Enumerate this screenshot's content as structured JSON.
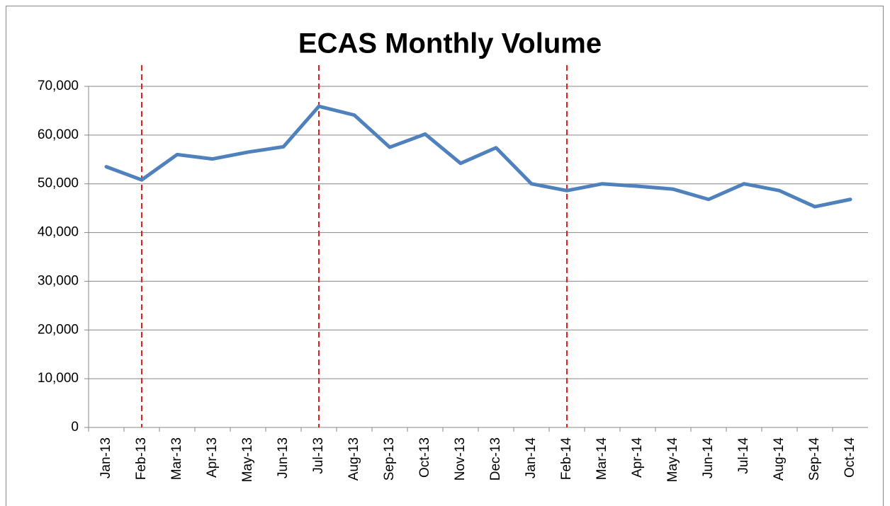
{
  "chart_data": {
    "type": "line",
    "title": "ECAS Monthly Volume",
    "categories": [
      "Jan-13",
      "Feb-13",
      "Mar-13",
      "Apr-13",
      "May-13",
      "Jun-13",
      "Jul-13",
      "Aug-13",
      "Sep-13",
      "Oct-13",
      "Nov-13",
      "Dec-13",
      "Jan-14",
      "Feb-14",
      "Mar-14",
      "Apr-14",
      "May-14",
      "Jun-14",
      "Jul-14",
      "Aug-14",
      "Sep-14",
      "Oct-14"
    ],
    "series": [
      {
        "name": "ECAS Monthly Volume",
        "color": "#4f81bd",
        "values": [
          53500,
          50800,
          56000,
          55100,
          56500,
          57600,
          65900,
          64100,
          57500,
          60200,
          54200,
          57400,
          50000,
          48600,
          50000,
          49500,
          48900,
          46800,
          50000,
          48600,
          45300,
          46800
        ]
      }
    ],
    "ylim": [
      0,
      70000
    ],
    "yticks": [
      0,
      {
        "value": 10000,
        "label": "10,000"
      },
      {
        "value": 20000,
        "label": "20,000"
      },
      {
        "value": 30000,
        "label": "30,000"
      },
      {
        "value": 40000,
        "label": "40,000"
      },
      {
        "value": 50000,
        "label": "50,000"
      },
      {
        "value": 60000,
        "label": "60,000"
      },
      {
        "value": 70000,
        "label": "70,000"
      }
    ],
    "grid": true,
    "vertical_lines": {
      "at": [
        "Feb-13",
        "Jul-13",
        "Feb-14"
      ],
      "color": "#e02020",
      "style": "dashed"
    }
  }
}
